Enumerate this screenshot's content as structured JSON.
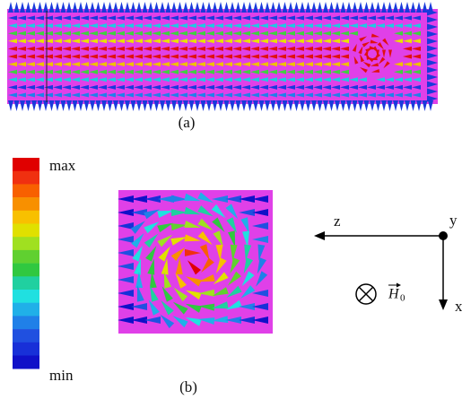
{
  "panel_a": {
    "label": "(a)"
  },
  "colorbar": {
    "max_label": "max",
    "min_label": "min"
  },
  "panel_b": {
    "label": "(b)"
  },
  "axes": {
    "z_label": "z",
    "y_label": "y",
    "x_label": "x",
    "field_symbol": "H",
    "field_subscript": "0"
  }
}
